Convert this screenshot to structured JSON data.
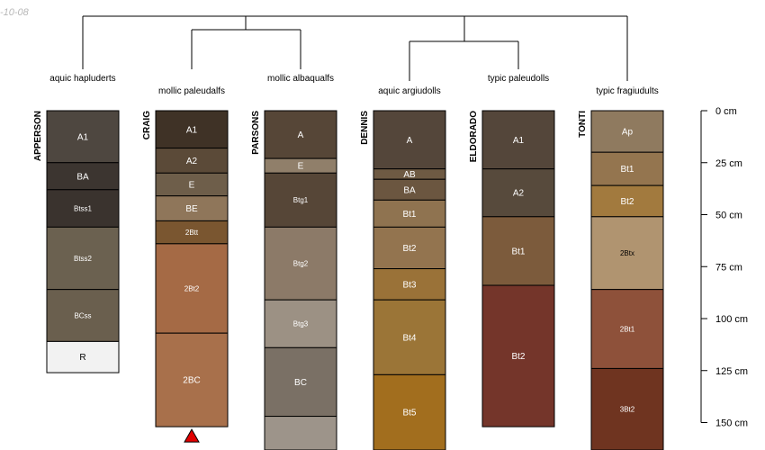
{
  "header": {
    "date_fragment": "-10-08"
  },
  "colors": {
    "line": "#000000",
    "missing_marker": "#e00000"
  },
  "depth_axis": {
    "unit": "cm",
    "ticks": [
      {
        "depth": 0,
        "label": "0 cm"
      },
      {
        "depth": 25,
        "label": "25 cm"
      },
      {
        "depth": 50,
        "label": "50 cm"
      },
      {
        "depth": 75,
        "label": "75 cm"
      },
      {
        "depth": 100,
        "label": "100 cm"
      },
      {
        "depth": 125,
        "label": "125 cm"
      },
      {
        "depth": 150,
        "label": "150 cm"
      }
    ]
  },
  "profiles": [
    {
      "name": "APPERSON",
      "taxonomy": "aquic hapluderts",
      "horizons": [
        {
          "name": "A1",
          "top": 0,
          "bottom": 25,
          "color": "#4e4740",
          "text": "#ffffff"
        },
        {
          "name": "BA",
          "top": 25,
          "bottom": 38,
          "color": "#3c3530",
          "text": "#ffffff"
        },
        {
          "name": "Btss1",
          "top": 38,
          "bottom": 56,
          "color": "#3a332e",
          "text": "#ffffff"
        },
        {
          "name": "Btss2",
          "top": 56,
          "bottom": 86,
          "color": "#6b6150",
          "text": "#ffffff"
        },
        {
          "name": "BCss",
          "top": 86,
          "bottom": 111,
          "color": "#6a5f4e",
          "text": "#ffffff"
        },
        {
          "name": "R",
          "top": 111,
          "bottom": 126,
          "color": "#f2f2f2",
          "text": "#000000"
        }
      ]
    },
    {
      "name": "CRAIG",
      "taxonomy": "mollic paleudalfs",
      "missing_below": true,
      "horizons": [
        {
          "name": "A1",
          "top": 0,
          "bottom": 18,
          "color": "#3f3226",
          "text": "#ffffff"
        },
        {
          "name": "A2",
          "top": 18,
          "bottom": 30,
          "color": "#5b4a38",
          "text": "#ffffff"
        },
        {
          "name": "E",
          "top": 30,
          "bottom": 41,
          "color": "#6e5e4a",
          "text": "#ffffff"
        },
        {
          "name": "BE",
          "top": 41,
          "bottom": 53,
          "color": "#8f765a",
          "text": "#ffffff"
        },
        {
          "name": "2Btt",
          "top": 53,
          "bottom": 64,
          "color": "#7a5630",
          "text": "#ffffff"
        },
        {
          "name": "2Bt2",
          "top": 64,
          "bottom": 107,
          "color": "#a56a45",
          "text": "#ffffff"
        },
        {
          "name": "2BC",
          "top": 107,
          "bottom": 152,
          "color": "#a8704b",
          "text": "#ffffff"
        }
      ]
    },
    {
      "name": "PARSONS",
      "taxonomy": "mollic albaqualfs",
      "horizons": [
        {
          "name": "A",
          "top": 0,
          "bottom": 23,
          "color": "#564637",
          "text": "#ffffff"
        },
        {
          "name": "E",
          "top": 23,
          "bottom": 30,
          "color": "#907f6a",
          "text": "#ffffff"
        },
        {
          "name": "Btg1",
          "top": 30,
          "bottom": 56,
          "color": "#564637",
          "text": "#ffffff"
        },
        {
          "name": "Btg2",
          "top": 56,
          "bottom": 91,
          "color": "#8c7a68",
          "text": "#ffffff"
        },
        {
          "name": "Btg3",
          "top": 91,
          "bottom": 114,
          "color": "#9c9184",
          "text": "#ffffff"
        },
        {
          "name": "BC",
          "top": 114,
          "bottom": 147,
          "color": "#7a7065",
          "text": "#ffffff"
        },
        {
          "name": "",
          "top": 147,
          "bottom": 165,
          "color": "#9d948a",
          "text": "#ffffff"
        }
      ]
    },
    {
      "name": "DENNIS",
      "taxonomy": "aquic argiudolls",
      "horizons": [
        {
          "name": "A",
          "top": 0,
          "bottom": 28,
          "color": "#54463a",
          "text": "#ffffff"
        },
        {
          "name": "AB",
          "top": 28,
          "bottom": 33,
          "color": "#6e5a43",
          "text": "#ffffff"
        },
        {
          "name": "BA",
          "top": 33,
          "bottom": 43,
          "color": "#6b5640",
          "text": "#ffffff"
        },
        {
          "name": "Bt1",
          "top": 43,
          "bottom": 56,
          "color": "#8f7350",
          "text": "#ffffff"
        },
        {
          "name": "Bt2",
          "top": 56,
          "bottom": 76,
          "color": "#93744f",
          "text": "#ffffff"
        },
        {
          "name": "Bt3",
          "top": 76,
          "bottom": 91,
          "color": "#9a7238",
          "text": "#ffffff"
        },
        {
          "name": "Bt4",
          "top": 91,
          "bottom": 127,
          "color": "#9b7537",
          "text": "#ffffff"
        },
        {
          "name": "Bt5",
          "top": 127,
          "bottom": 165,
          "color": "#a26e1e",
          "text": "#ffffff"
        }
      ]
    },
    {
      "name": "ELDORADO",
      "taxonomy": "typic paleudolls",
      "horizons": [
        {
          "name": "A1",
          "top": 0,
          "bottom": 28,
          "color": "#54463a",
          "text": "#ffffff"
        },
        {
          "name": "A2",
          "top": 28,
          "bottom": 51,
          "color": "#574a3c",
          "text": "#ffffff"
        },
        {
          "name": "Bt1",
          "top": 51,
          "bottom": 84,
          "color": "#7c5b3c",
          "text": "#ffffff"
        },
        {
          "name": "Bt2",
          "top": 84,
          "bottom": 152,
          "color": "#74352a",
          "text": "#ffffff"
        }
      ]
    },
    {
      "name": "TONTI",
      "taxonomy": "typic fragiudults",
      "horizons": [
        {
          "name": "Ap",
          "top": 0,
          "bottom": 20,
          "color": "#8f7a5f",
          "text": "#ffffff"
        },
        {
          "name": "Bt1",
          "top": 20,
          "bottom": 36,
          "color": "#94754f",
          "text": "#ffffff"
        },
        {
          "name": "Bt2",
          "top": 36,
          "bottom": 51,
          "color": "#a27a3e",
          "text": "#ffffff"
        },
        {
          "name": "2Btx",
          "top": 51,
          "bottom": 86,
          "color": "#b09470",
          "text": "#000000"
        },
        {
          "name": "2Bt1",
          "top": 86,
          "bottom": 124,
          "color": "#8e513a",
          "text": "#ffffff"
        },
        {
          "name": "3Bt2",
          "top": 124,
          "bottom": 165,
          "color": "#6f3420",
          "text": "#ffffff"
        }
      ]
    }
  ]
}
